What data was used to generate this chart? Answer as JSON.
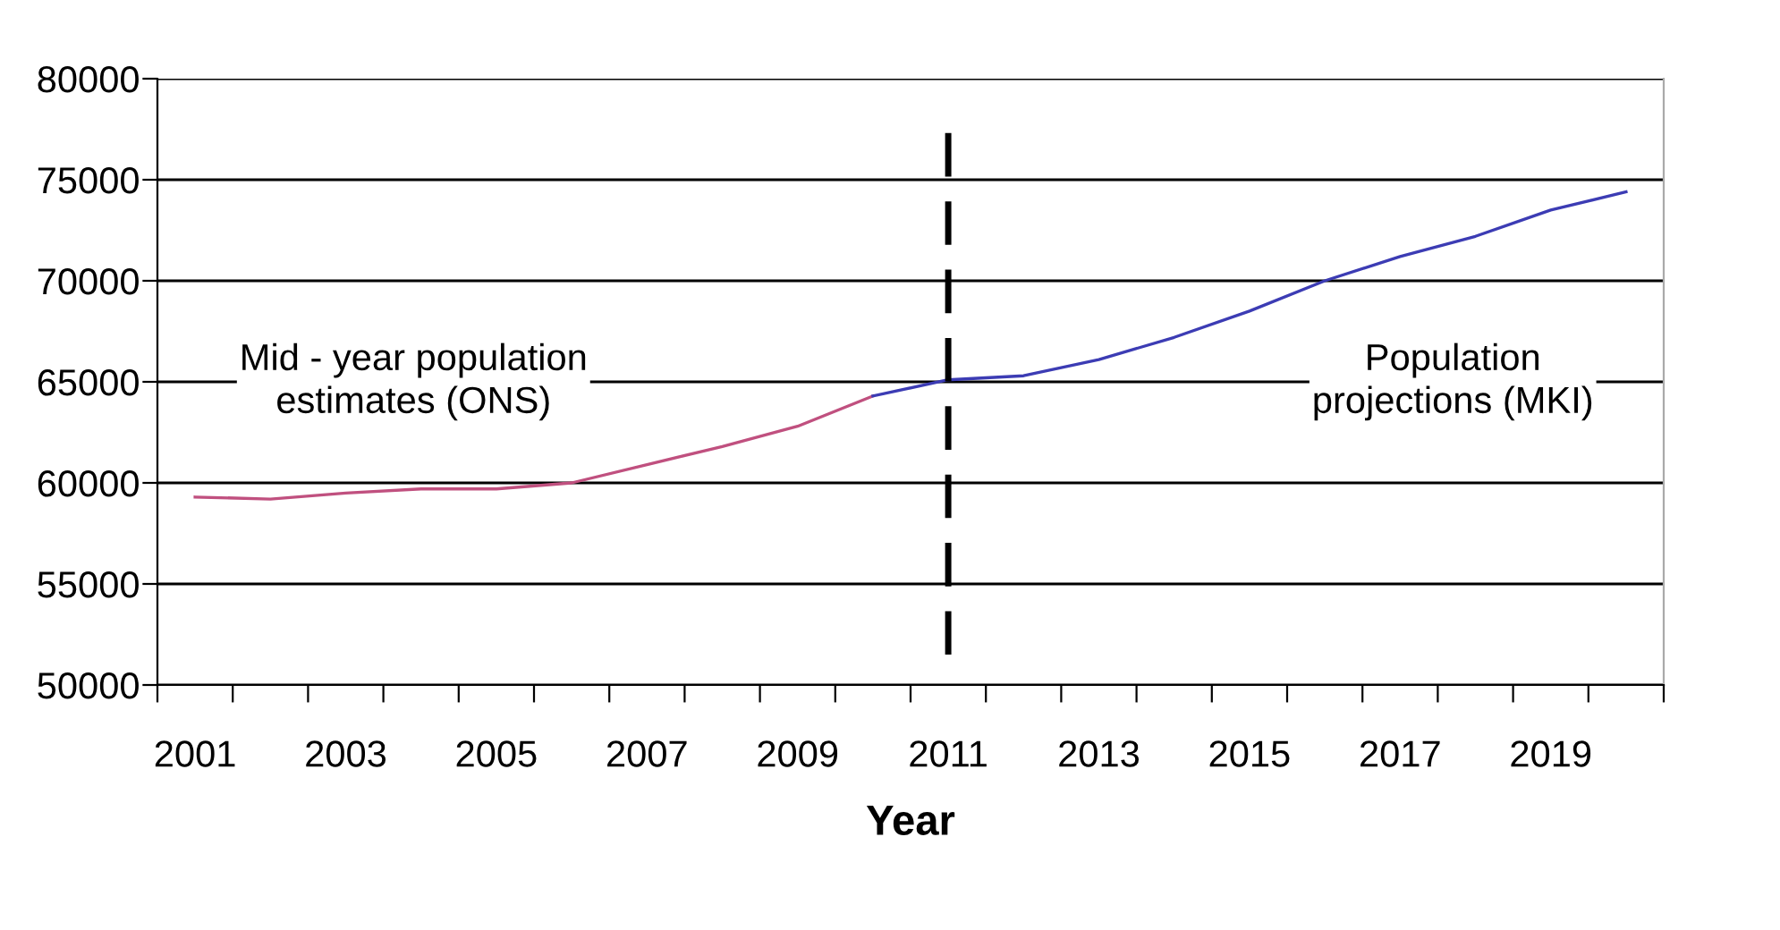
{
  "chart_data": {
    "type": "line",
    "xlabel": "Year",
    "categories": [
      "2001",
      null,
      "2003",
      null,
      "2005",
      null,
      "2007",
      null,
      "2009",
      null,
      "2011",
      null,
      "2013",
      null,
      "2015",
      null,
      "2017",
      null,
      "2019",
      null
    ],
    "series": [
      {
        "color": "#c0507f",
        "values": [
          59300,
          59200,
          59500,
          59700,
          59700,
          60000,
          60900,
          61800,
          62800,
          64300,
          null,
          null,
          null,
          null,
          null,
          null,
          null,
          null,
          null,
          null
        ]
      },
      {
        "color": "#3c3cb4",
        "values": [
          null,
          null,
          null,
          null,
          null,
          null,
          null,
          null,
          null,
          64300,
          65100,
          65300,
          66100,
          67200,
          68500,
          70000,
          71200,
          72200,
          73500,
          74400
        ]
      }
    ],
    "ylim": [
      50000,
      80000
    ],
    "yticks": [
      50000,
      55000,
      60000,
      65000,
      70000,
      75000,
      80000
    ],
    "grid": "y",
    "legend": false,
    "marker": "none",
    "line_style": "solid",
    "ref_lines": [
      {
        "axis": "x",
        "value": "2011",
        "color": "#000000",
        "line_style": "dashed"
      }
    ],
    "annotations": [
      "Mid - year population\nestimates (ONS)",
      "Population\nprojections (MKI)"
    ]
  }
}
